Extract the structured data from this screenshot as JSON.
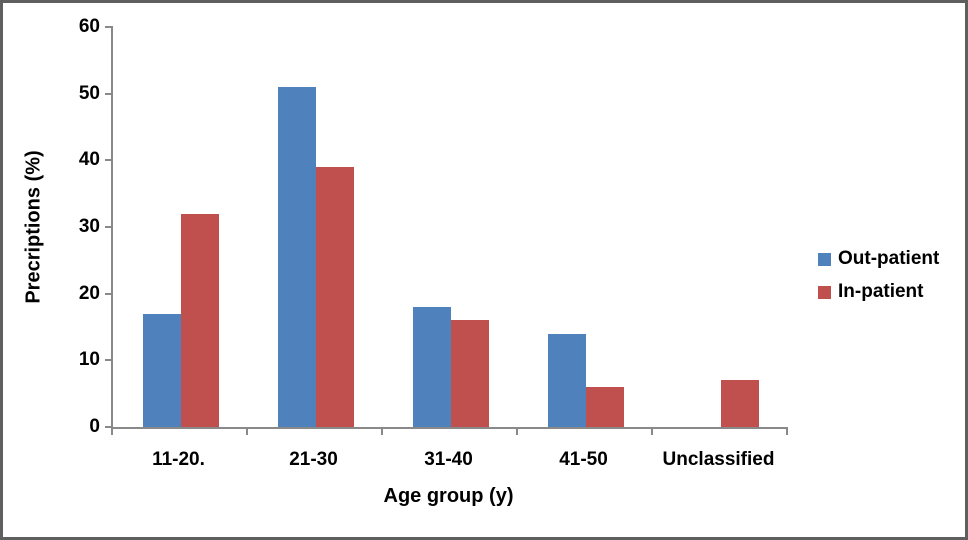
{
  "chart_data": {
    "type": "bar",
    "title": "",
    "xlabel": "Age group (y)",
    "ylabel": "Precriptions (%)",
    "categories": [
      "11-20.",
      "21-30",
      "31-40",
      "41-50",
      "Unclassified"
    ],
    "series": [
      {
        "name": "Out-patient",
        "color": "#4F81BD",
        "values": [
          17,
          51,
          18,
          14,
          0
        ]
      },
      {
        "name": "In-patient",
        "color": "#C0504D",
        "values": [
          32,
          39,
          16,
          6,
          7
        ]
      }
    ],
    "ylim": [
      0,
      60
    ],
    "ytick_step": 10,
    "grid": "off",
    "legend_position": "right"
  },
  "colors": {
    "axis": "#898989",
    "text": "#000000",
    "frame_border": "#5F5F5F",
    "background": "#FFFFFF"
  }
}
